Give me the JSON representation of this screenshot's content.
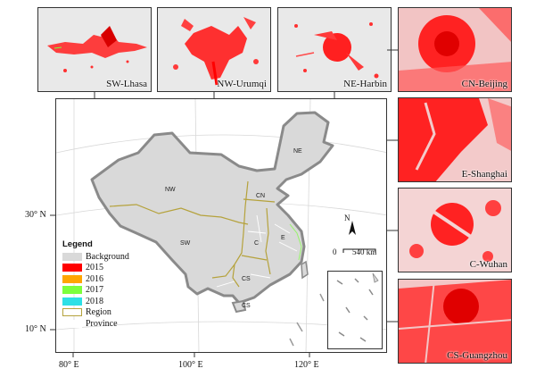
{
  "panels": [
    {
      "id": "sw-lhasa",
      "label": "SW-Lhasa"
    },
    {
      "id": "nw-urumqi",
      "label": "NW-Urumqi"
    },
    {
      "id": "ne-harbin",
      "label": "NE-Harbin"
    },
    {
      "id": "cn-beijing",
      "label": "CN-Beijing"
    },
    {
      "id": "e-shanghai",
      "label": "E-Shanghai"
    },
    {
      "id": "c-wuhan",
      "label": "C-Wuhan"
    },
    {
      "id": "cs-guangzhou",
      "label": "CS-Guangzhou"
    }
  ],
  "regions": [
    "NE",
    "NW",
    "CN",
    "SW",
    "C",
    "E",
    "CS"
  ],
  "latitudes": [
    "30° N",
    "10° N"
  ],
  "longitudes": [
    "80° E",
    "100° E",
    "120° E"
  ],
  "legend": {
    "title": "Legend",
    "items": [
      {
        "label": "Background",
        "color": "#d9d9d9"
      },
      {
        "label": "2015",
        "color": "#ff0000"
      },
      {
        "label": "2016",
        "color": "#ffa500"
      },
      {
        "label": "2017",
        "color": "#7cff3c"
      },
      {
        "label": "2018",
        "color": "#2de0e6"
      },
      {
        "label": "Region",
        "color": "#ffffff",
        "border": "#b5a23c"
      },
      {
        "label": "Province",
        "color": "#ffffff",
        "border": "#ffffff"
      }
    ]
  },
  "north_arrow": "N",
  "scale_bar": {
    "zero": "0",
    "distance": "540 km"
  },
  "colors": {
    "urban": "#ff0000",
    "background": "#e9e9e9",
    "china_fill": "#d9d9d9",
    "region_line": "#b5a23c",
    "border_line": "#8a8a8a"
  }
}
